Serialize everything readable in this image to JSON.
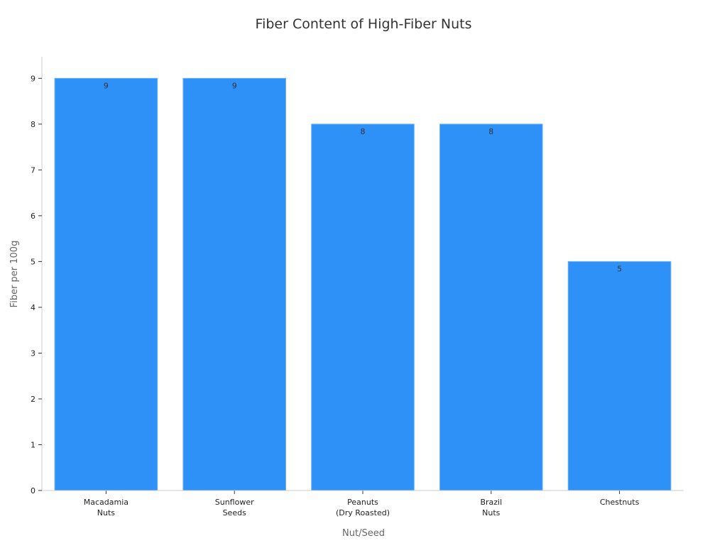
{
  "chart_data": {
    "type": "bar",
    "title": "Fiber Content of High-Fiber Nuts",
    "xlabel": "Nut/Seed",
    "ylabel": "Fiber per 100g",
    "categories": [
      [
        "Macadamia",
        "Nuts"
      ],
      [
        "Sunflower",
        "Seeds"
      ],
      [
        "Peanuts",
        "(Dry Roasted)"
      ],
      [
        "Brazil",
        "Nuts"
      ],
      [
        "Chestnuts"
      ]
    ],
    "values": [
      9,
      9,
      8,
      8,
      5
    ],
    "data_labels": [
      "9",
      "9",
      "8",
      "8",
      "5"
    ],
    "yticks": [
      0,
      1,
      2,
      3,
      4,
      5,
      6,
      7,
      8,
      9
    ],
    "ylim": [
      0,
      9.47
    ],
    "grid": false,
    "bar_color": "#2E91F7",
    "bar_edge_color": "#6FB2F9"
  }
}
